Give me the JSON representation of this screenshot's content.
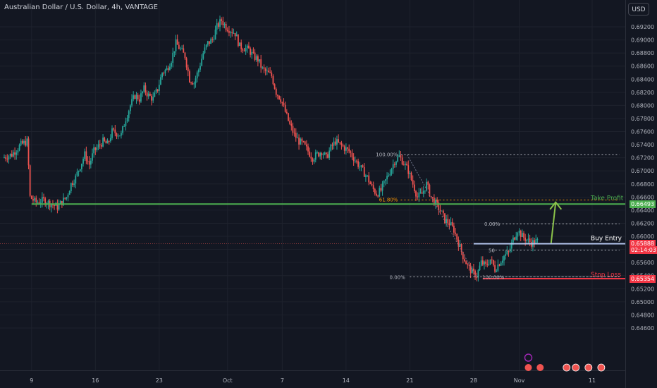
{
  "header": {
    "title": "Australian Dollar / U.S. Dollar, 4h, VANTAGE",
    "currency": "USD"
  },
  "colors": {
    "bg": "#131722",
    "grid": "#1e222d",
    "up": "#26a69a",
    "down": "#ef5350",
    "green": "#4caf50",
    "red": "#f23645",
    "orange": "#ff9800",
    "blue": "#b7c9f2"
  },
  "chart_data": {
    "type": "candlestick",
    "ylim": [
      0.6455,
      0.6935
    ],
    "xlim": [
      0,
      67.5
    ],
    "yticks": [
      "0.69200",
      "0.69000",
      "0.68800",
      "0.68600",
      "0.68400",
      "0.68200",
      "0.68000",
      "0.67800",
      "0.67600",
      "0.67400",
      "0.67200",
      "0.67000",
      "0.66800",
      "0.66600",
      "0.66400",
      "0.66200",
      "0.66000",
      "0.65800",
      "0.65600",
      "0.65400",
      "0.65200",
      "0.65000",
      "0.64800",
      "0.64600"
    ],
    "xticks": [
      {
        "label": "9",
        "day": 3
      },
      {
        "label": "16",
        "day": 10
      },
      {
        "label": "23",
        "day": 17
      },
      {
        "label": "Oct",
        "day": 24.5
      },
      {
        "label": "7",
        "day": 30.5
      },
      {
        "label": "14",
        "day": 37.5
      },
      {
        "label": "21",
        "day": 44.5
      },
      {
        "label": "28",
        "day": 51.5
      },
      {
        "label": "Nov",
        "day": 56.5
      },
      {
        "label": "11",
        "day": 64.5
      }
    ],
    "price_path": [
      [
        0,
        0.672
      ],
      [
        1,
        0.6725
      ],
      [
        2,
        0.674
      ],
      [
        2.7,
        0.6745
      ],
      [
        3,
        0.666
      ],
      [
        3.6,
        0.6652
      ],
      [
        4.5,
        0.6655
      ],
      [
        5.5,
        0.6648
      ],
      [
        6,
        0.6645
      ],
      [
        7,
        0.666
      ],
      [
        7.5,
        0.668
      ],
      [
        8,
        0.669
      ],
      [
        9,
        0.6725
      ],
      [
        9.5,
        0.671
      ],
      [
        10,
        0.673
      ],
      [
        11,
        0.6745
      ],
      [
        11.5,
        0.674
      ],
      [
        12,
        0.676
      ],
      [
        13,
        0.6755
      ],
      [
        13.5,
        0.678
      ],
      [
        14,
        0.68
      ],
      [
        14.5,
        0.6815
      ],
      [
        15,
        0.681
      ],
      [
        15.5,
        0.6825
      ],
      [
        16,
        0.6815
      ],
      [
        16.5,
        0.681
      ],
      [
        17,
        0.6825
      ],
      [
        17.5,
        0.685
      ],
      [
        18,
        0.6855
      ],
      [
        18.5,
        0.687
      ],
      [
        19,
        0.6895
      ],
      [
        19.5,
        0.6885
      ],
      [
        20,
        0.6875
      ],
      [
        20.5,
        0.684
      ],
      [
        21,
        0.6835
      ],
      [
        21.5,
        0.6855
      ],
      [
        22,
        0.688
      ],
      [
        22.5,
        0.6895
      ],
      [
        23,
        0.69
      ],
      [
        23.5,
        0.692
      ],
      [
        24,
        0.693
      ],
      [
        24.5,
        0.692
      ],
      [
        25,
        0.6915
      ],
      [
        25.5,
        0.691
      ],
      [
        26,
        0.689
      ],
      [
        27,
        0.6885
      ],
      [
        27.5,
        0.6875
      ],
      [
        28,
        0.687
      ],
      [
        28.5,
        0.6855
      ],
      [
        29,
        0.685
      ],
      [
        29.5,
        0.6845
      ],
      [
        30,
        0.682
      ],
      [
        30.5,
        0.681
      ],
      [
        31,
        0.679
      ],
      [
        31.5,
        0.677
      ],
      [
        32,
        0.6755
      ],
      [
        32.5,
        0.6745
      ],
      [
        33,
        0.674
      ],
      [
        33.5,
        0.673
      ],
      [
        34,
        0.672
      ],
      [
        34.5,
        0.6725
      ],
      [
        35,
        0.673
      ],
      [
        35.5,
        0.672
      ],
      [
        36,
        0.6735
      ],
      [
        36.5,
        0.6745
      ],
      [
        37,
        0.674
      ],
      [
        37.5,
        0.6735
      ],
      [
        38,
        0.673
      ],
      [
        38.5,
        0.672
      ],
      [
        39,
        0.671
      ],
      [
        39.5,
        0.67
      ],
      [
        40,
        0.669
      ],
      [
        40.5,
        0.6675
      ],
      [
        41,
        0.6665
      ],
      [
        41.5,
        0.667
      ],
      [
        42,
        0.6685
      ],
      [
        42.5,
        0.67
      ],
      [
        43,
        0.6715
      ],
      [
        43.5,
        0.6722
      ],
      [
        44,
        0.6712
      ],
      [
        44.5,
        0.67
      ],
      [
        45,
        0.668
      ],
      [
        45.5,
        0.666
      ],
      [
        46,
        0.6665
      ],
      [
        46.5,
        0.668
      ],
      [
        47,
        0.666
      ],
      [
        47.5,
        0.665
      ],
      [
        48,
        0.664
      ],
      [
        48.5,
        0.6625
      ],
      [
        49,
        0.662
      ],
      [
        49.5,
        0.661
      ],
      [
        50,
        0.659
      ],
      [
        50.5,
        0.657
      ],
      [
        51,
        0.6555
      ],
      [
        51.5,
        0.6545
      ],
      [
        52,
        0.654
      ],
      [
        52.5,
        0.656
      ],
      [
        53,
        0.6555
      ],
      [
        53.5,
        0.6565
      ],
      [
        54,
        0.655
      ],
      [
        54.5,
        0.656
      ],
      [
        55,
        0.657
      ],
      [
        55.5,
        0.6575
      ],
      [
        56,
        0.6595
      ],
      [
        56.5,
        0.661
      ],
      [
        57,
        0.66
      ],
      [
        57.5,
        0.6595
      ],
      [
        58,
        0.659
      ],
      [
        58.5,
        0.6592
      ]
    ],
    "horizontal_lines": [
      {
        "name": "Take Profit",
        "price": 0.66493,
        "color": "#4caf50",
        "x_start_day": 3
      },
      {
        "name": "Buy Entry",
        "price": 0.65888,
        "color": "#b7c9f2",
        "x_start_day": 51.5
      },
      {
        "name": "Stop Loss",
        "price": 0.65354,
        "color": "#f23645",
        "x_start_day": 52.5
      }
    ],
    "fib_upper": {
      "x_start_day": 43.5,
      "x_end_day": 67.5,
      "levels": [
        {
          "label": "100.00%",
          "price": 0.67246,
          "color": "#b2b5be"
        },
        {
          "label": "61.80%",
          "price": 0.66555,
          "color": "#ff9800"
        }
      ]
    },
    "fib_lower": {
      "x_start_day": 53.5,
      "x_end_day": 67.5,
      "levels": [
        {
          "label": "0.00%",
          "price": 0.65381,
          "color": "#b2b5be"
        },
        {
          "label": "0.00%",
          "price": 0.66192,
          "color": "#b2b5be"
        },
        {
          "label": "50",
          "price": 0.6579,
          "color": "#b2b5be"
        },
        {
          "label": "100.00%",
          "price": 0.65381,
          "color": "#b2b5be"
        }
      ]
    },
    "arrow": {
      "from_day": 60,
      "from_price": 0.659,
      "to_day": 60.5,
      "to_price": 0.6652,
      "color": "#8bc34a"
    },
    "annotations": {
      "take_profit": "Take Profit",
      "buy_entry": "Buy Entry",
      "stop_loss": "Stop Loss"
    },
    "price_labels": [
      {
        "text": "0.66493",
        "color": "#4caf50",
        "price": 0.66493
      },
      {
        "text": "0.65888",
        "color": "#f23645",
        "price": 0.65888
      },
      {
        "text": "02:14:03",
        "color": "#f23645",
        "price": 0.658
      },
      {
        "text": "0.65354",
        "color": "#f23645",
        "price": 0.65354
      }
    ]
  }
}
